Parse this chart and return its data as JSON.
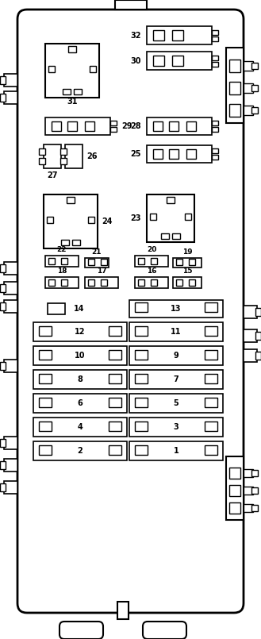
{
  "bg": "#ffffff",
  "lc": "#000000",
  "fig_w": 3.29,
  "fig_h": 8.05
}
